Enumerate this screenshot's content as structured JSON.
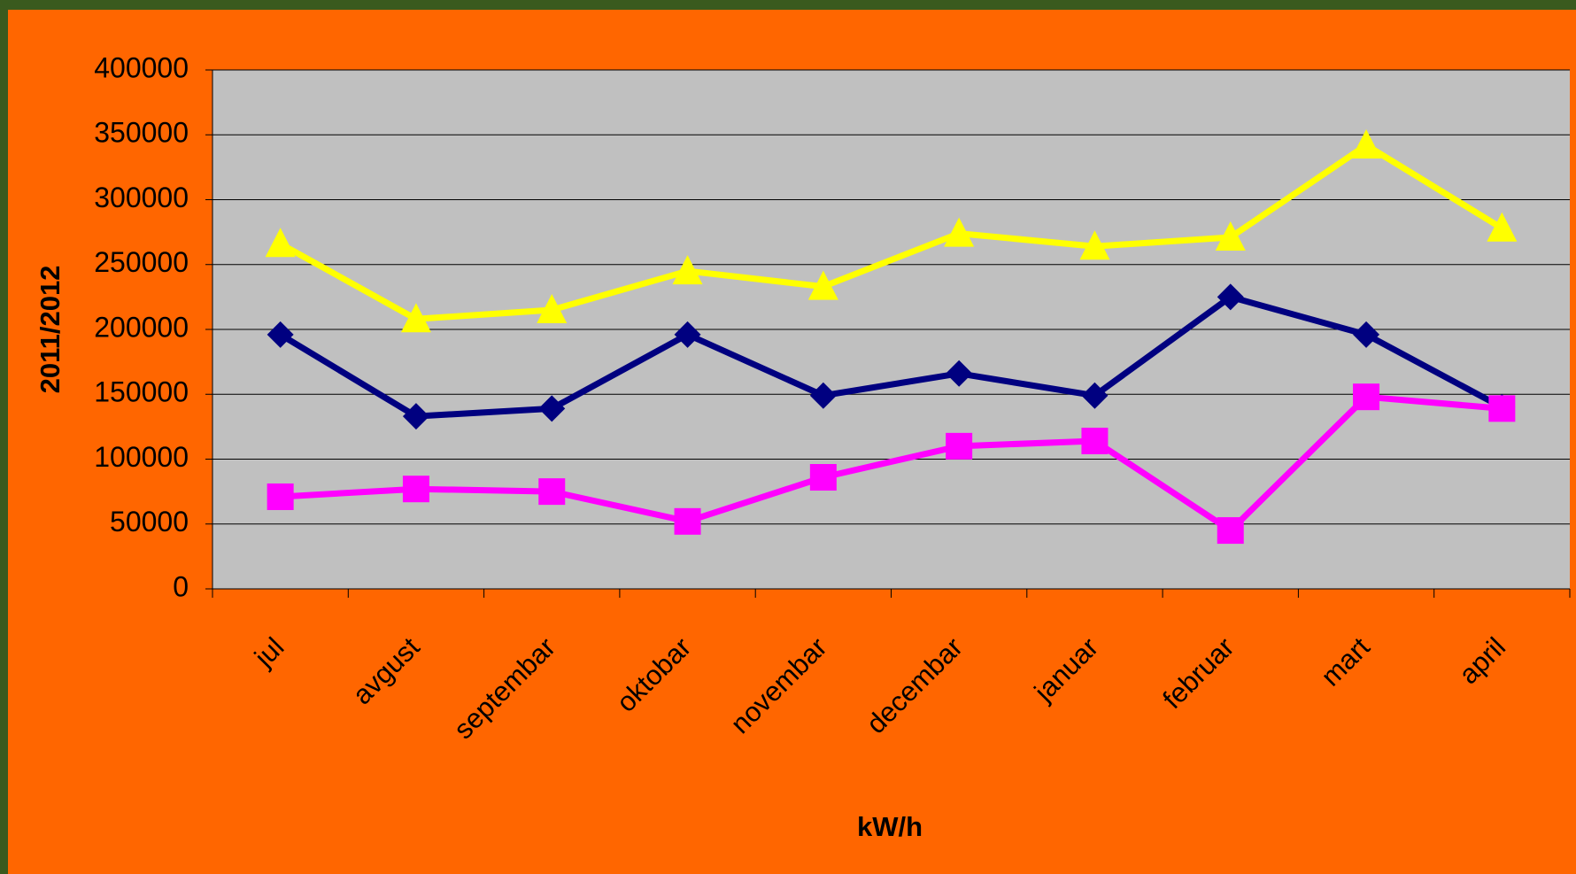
{
  "chart_data": {
    "type": "line",
    "y_label": "2011/2012",
    "x_label": "kW/h",
    "categories": [
      "jul",
      "avgust",
      "septembar",
      "oktobar",
      "novembar",
      "decembar",
      "januar",
      "februar",
      "mart",
      "april"
    ],
    "series": [
      {
        "color": "#ffff00",
        "marker": "triangle",
        "values": [
          266000,
          208000,
          215000,
          245000,
          233000,
          274000,
          264000,
          271000,
          342000,
          278000
        ]
      },
      {
        "color": "#000080",
        "marker": "diamond",
        "values": [
          196000,
          133000,
          139000,
          196000,
          149000,
          166000,
          149000,
          225000,
          196000,
          140000
        ]
      },
      {
        "color": "#ff00ff",
        "marker": "square",
        "values": [
          71000,
          77000,
          75000,
          52000,
          86000,
          110000,
          114000,
          45000,
          148000,
          139000
        ]
      }
    ],
    "ylim": [
      0,
      400000
    ],
    "yticks": [
      0,
      50000,
      100000,
      150000,
      200000,
      250000,
      300000,
      350000,
      400000
    ],
    "grid": true
  }
}
